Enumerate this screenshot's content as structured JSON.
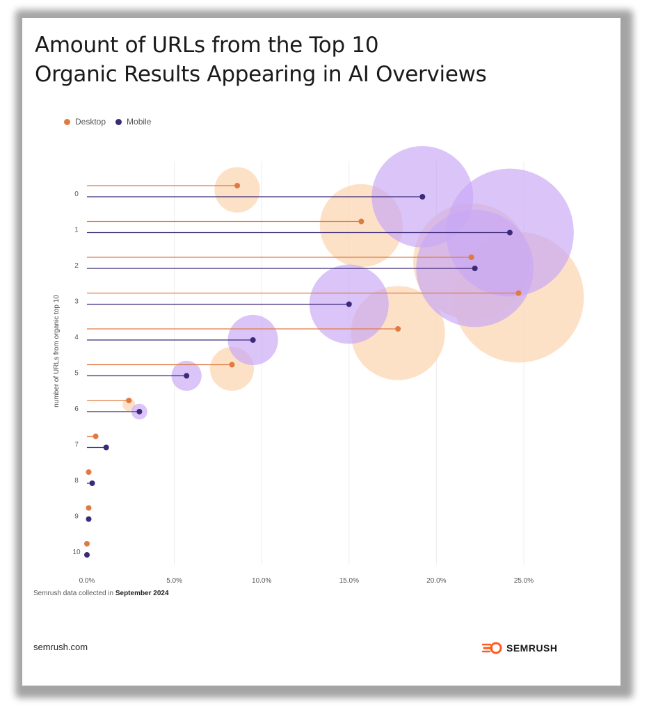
{
  "title_lines": [
    "Amount of URLs from the Top 10",
    "Organic Results Appearing in AI Overviews"
  ],
  "source_prefix": "Semrush data collected in ",
  "source_date": "September 2024",
  "footer_site": "semrush.com",
  "brand_name": "SEMRUSH",
  "colors": {
    "desktop_dot": "#e07a43",
    "desktop_bubble": "#fbd9b8",
    "mobile_dot": "#3b2a78",
    "mobile_bubble": "#c9a8f4",
    "grid": "#ececec"
  },
  "chart_data": {
    "type": "scatter",
    "ylabel": "number of URLs from organic top 10",
    "xlabel": "",
    "categories": [
      "0",
      "1",
      "2",
      "3",
      "4",
      "5",
      "6",
      "7",
      "8",
      "9",
      "10"
    ],
    "x_ticks": [
      "0.0%",
      "5.0%",
      "10.0%",
      "15.0%",
      "20.0%",
      "25.0%"
    ],
    "xlim": [
      0,
      25
    ],
    "grid": true,
    "legend_position": "top-left",
    "series": [
      {
        "name": "Desktop",
        "values": [
          8.6,
          15.7,
          22.0,
          24.7,
          17.8,
          8.3,
          2.4,
          0.5,
          0.1,
          0.1,
          0.0
        ]
      },
      {
        "name": "Mobile",
        "values": [
          19.2,
          24.2,
          22.2,
          15.0,
          9.5,
          5.7,
          3.0,
          1.1,
          0.3,
          0.1,
          0.0
        ]
      }
    ]
  }
}
